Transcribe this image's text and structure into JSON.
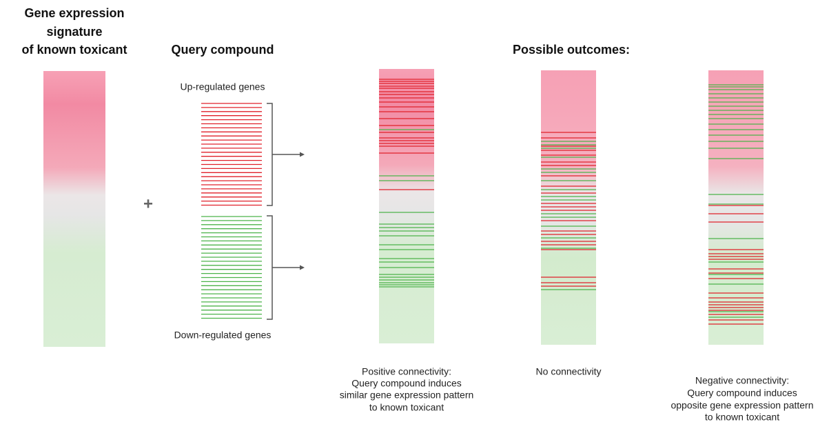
{
  "signature": {
    "title": [
      "Gene expression",
      "signature",
      "of known toxicant"
    ]
  },
  "plus": "+",
  "query": {
    "title": "Query compound",
    "up_label": "Up-regulated genes",
    "down_label": "Down-regulated genes"
  },
  "outcomes": {
    "title": "Possible outcomes:",
    "panels": [
      {
        "caption": [
          "Positive connectivity:",
          "Query compound induces",
          "similar gene expression pattern",
          "to known toxicant"
        ]
      },
      {
        "caption": [
          "No connectivity"
        ]
      },
      {
        "caption": [
          "Negative connectivity:",
          "Query compound induces",
          "opposite gene expression pattern",
          "to known toxicant"
        ]
      }
    ]
  }
}
